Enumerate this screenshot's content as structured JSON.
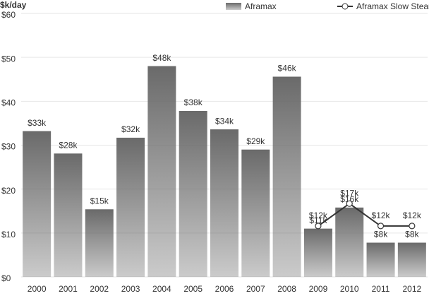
{
  "chart_data": {
    "type": "bar",
    "y_label": "$k/day",
    "categories": [
      "2000",
      "2001",
      "2002",
      "2003",
      "2004",
      "2005",
      "2006",
      "2007",
      "2008",
      "2009",
      "2010",
      "2011",
      "2012"
    ],
    "series": [
      {
        "name": "Aframax",
        "type": "bar",
        "color": "#6a6a6a",
        "values": [
          33.2,
          28.1,
          15.4,
          31.7,
          48.0,
          37.8,
          33.6,
          29.0,
          45.6,
          11.0,
          15.8,
          7.8,
          7.8
        ],
        "value_labels": [
          "$33k",
          "$28k",
          "$15k",
          "$32k",
          "$48k",
          "$38k",
          "$34k",
          "$29k",
          "$46k",
          "$11k",
          "$16k",
          "$8k",
          "$8k"
        ]
      },
      {
        "name": "Aframax Slow Steaming",
        "type": "line",
        "color": "#333333",
        "values": [
          null,
          null,
          null,
          null,
          null,
          null,
          null,
          null,
          null,
          11.6,
          16.7,
          11.6,
          11.6
        ],
        "value_labels": [
          null,
          null,
          null,
          null,
          null,
          null,
          null,
          null,
          null,
          "$12k",
          "$17k",
          "$12k",
          "$12k"
        ]
      }
    ],
    "ylim": [
      0,
      60
    ],
    "yticks": [
      {
        "value": 0,
        "label": "$0"
      },
      {
        "value": 10,
        "label": "$10"
      },
      {
        "value": 20,
        "label": "$20"
      },
      {
        "value": 30,
        "label": "$30"
      },
      {
        "value": 40,
        "label": "$40"
      },
      {
        "value": 50,
        "label": "$50"
      },
      {
        "value": 60,
        "label": "$60"
      }
    ],
    "grid": true,
    "legend": "top-right"
  }
}
